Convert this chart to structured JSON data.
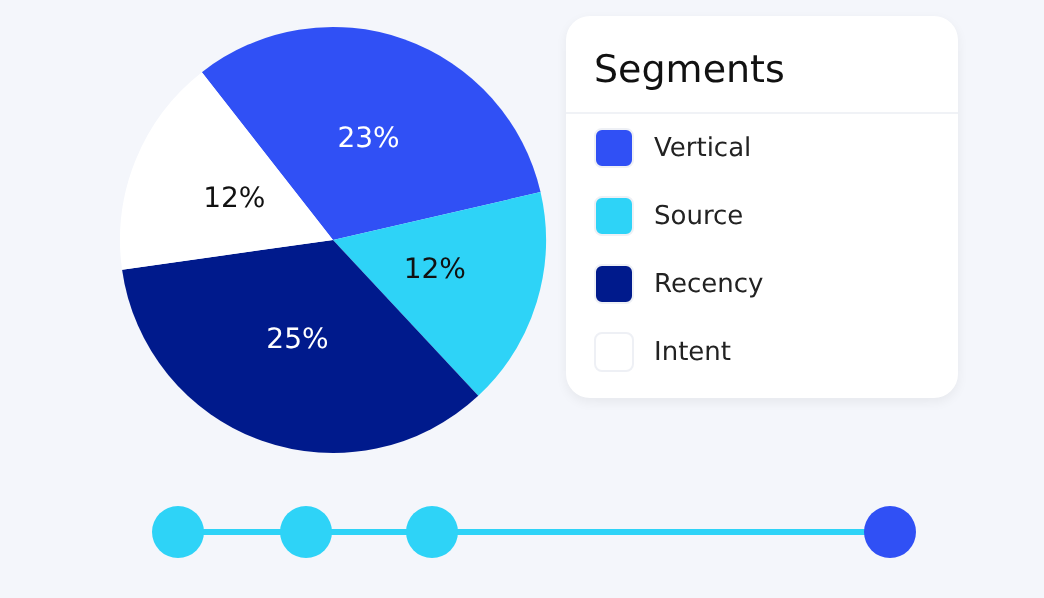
{
  "chart_data": {
    "type": "pie",
    "legend_title": "Segments",
    "legend": "right",
    "categories": [
      "Vertical",
      "Source",
      "Recency",
      "Intent"
    ],
    "values": [
      23,
      12,
      25,
      12
    ],
    "colors": [
      "#3050f5",
      "#2ed3f7",
      "#001a8c",
      "#ffffff"
    ],
    "value_labels": [
      "23%",
      "12%",
      "25%",
      "12%"
    ]
  }
}
